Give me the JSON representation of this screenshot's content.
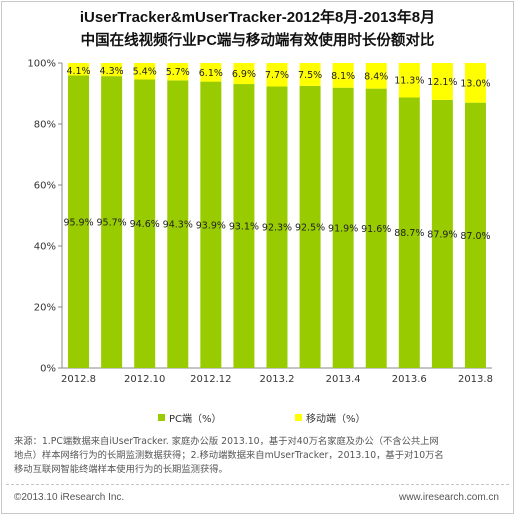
{
  "title_line1": "iUserTracker&mUserTracker-2012年8月-2013年8月",
  "title_line2": "中国在线视频行业PC端与移动端有效使用时长份额对比",
  "chart_data": {
    "type": "bar",
    "stacked": true,
    "percent": true,
    "title": "中国在线视频行业PC端与移动端有效使用时长份额对比",
    "categories": [
      "2012.8",
      "2012.9",
      "2012.10",
      "2012.11",
      "2012.12",
      "2013.1",
      "2013.2",
      "2013.3",
      "2013.4",
      "2013.5",
      "2013.6",
      "2013.7",
      "2013.8"
    ],
    "x_tick_labels": [
      "2012.8",
      "2012.10",
      "2012.12",
      "2013.2",
      "2013.4",
      "2013.6",
      "2013.8"
    ],
    "y_tick_labels": [
      "0%",
      "20%",
      "40%",
      "60%",
      "80%",
      "100%"
    ],
    "ylim": [
      0,
      100
    ],
    "series": [
      {
        "name": "PC端（%）",
        "color": "#99cc00",
        "values": [
          95.9,
          95.7,
          94.6,
          94.3,
          93.9,
          93.1,
          92.3,
          92.5,
          91.9,
          91.6,
          88.7,
          87.9,
          87.0
        ],
        "labels": [
          "95.9%",
          "95.7%",
          "94.6%",
          "94.3%",
          "93.9%",
          "93.1%",
          "92.3%",
          "92.5%",
          "91.9%",
          "91.6%",
          "88.7%",
          "87.9%",
          "87.0%"
        ]
      },
      {
        "name": "移动端（%）",
        "color": "#ffff00",
        "values": [
          4.1,
          4.3,
          5.4,
          5.7,
          6.1,
          6.9,
          7.7,
          7.5,
          8.1,
          8.4,
          11.3,
          12.1,
          13.0
        ],
        "labels": [
          "4.1%",
          "4.3%",
          "5.4%",
          "5.7%",
          "6.1%",
          "6.9%",
          "7.7%",
          "7.5%",
          "8.1%",
          "8.4%",
          "11.3%",
          "12.1%",
          "13.0%"
        ]
      }
    ],
    "legend_position": "bottom",
    "grid": false
  },
  "legend": {
    "pc_label": "PC端（%）",
    "mobile_label": "移动端（%）"
  },
  "note": {
    "line1": "来源：1.PC端数据来自iUserTracker. 家庭办公版 2013.10，基于对40万名家庭及办公（不含公共上网",
    "line2": "地点）样本网络行为的长期监测数据获得；2.移动端数据来自mUserTracker，2013.10，基于对10万名",
    "line3": "移动互联网智能终端样本使用行为的长期监测获得。"
  },
  "footer": {
    "copyright": "©2013.10 iResearch Inc.",
    "website": "www.iresearch.com.cn"
  }
}
